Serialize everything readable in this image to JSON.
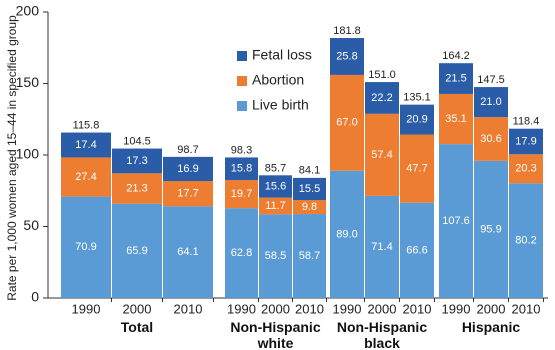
{
  "chart_data": {
    "type": "stacked-bar",
    "y_label": "Rate per 1,000 women aged 15–44 in specified group",
    "categories": [
      "1990",
      "2000",
      "2010",
      "1990",
      "2000",
      "2010",
      "1990",
      "2000",
      "2010",
      "1990",
      "2000",
      "2010"
    ],
    "groups": [
      "Total",
      "Non-Hispanic white",
      "Non-Hispanic black",
      "Hispanic"
    ],
    "series": [
      {
        "name": "Live birth",
        "color": "#5b9bd5",
        "values": [
          70.9,
          65.9,
          64.1,
          62.8,
          58.5,
          58.7,
          89.0,
          71.4,
          66.6,
          107.6,
          95.9,
          80.2
        ],
        "value_labels": [
          "70.9",
          "65.9",
          "64.1",
          "62.8",
          "58.5",
          "58.7",
          "89.0",
          "71.4",
          "66.6",
          "107.6",
          "95.9",
          "80.2"
        ]
      },
      {
        "name": "Abortion",
        "color": "#ed7d31",
        "values": [
          27.4,
          21.3,
          17.7,
          19.7,
          11.7,
          9.8,
          67.0,
          57.4,
          47.7,
          35.1,
          30.6,
          20.3
        ],
        "value_labels": [
          "27.4",
          "21.3",
          "17.7",
          "19.7",
          "11.7",
          "9.8",
          "67.0",
          "57.4",
          "47.7",
          "35.1",
          "30.6",
          "20.3"
        ]
      },
      {
        "name": "Fetal loss",
        "color": "#2a5ca8",
        "values": [
          17.4,
          17.3,
          16.9,
          15.8,
          15.6,
          15.5,
          25.8,
          22.2,
          20.9,
          21.5,
          21.0,
          17.9
        ],
        "value_labels": [
          "17.4",
          "17.3",
          "16.9",
          "15.8",
          "15.6",
          "15.5",
          "25.8",
          "22.2",
          "20.9",
          "21.5",
          "21.0",
          "17.9"
        ]
      }
    ],
    "totals": {
      "values": [
        115.8,
        104.5,
        98.7,
        98.3,
        85.7,
        84.1,
        181.8,
        151.0,
        135.1,
        164.2,
        147.5,
        118.4
      ],
      "value_labels": [
        "115.8",
        "104.5",
        "98.7",
        "98.3",
        "85.7",
        "84.1",
        "181.8",
        "151.0",
        "135.1",
        "164.2",
        "147.5",
        "118.4"
      ]
    },
    "ylim": [
      0,
      200
    ],
    "yticks": [
      0,
      50,
      100,
      150,
      200
    ],
    "grid": false
  }
}
